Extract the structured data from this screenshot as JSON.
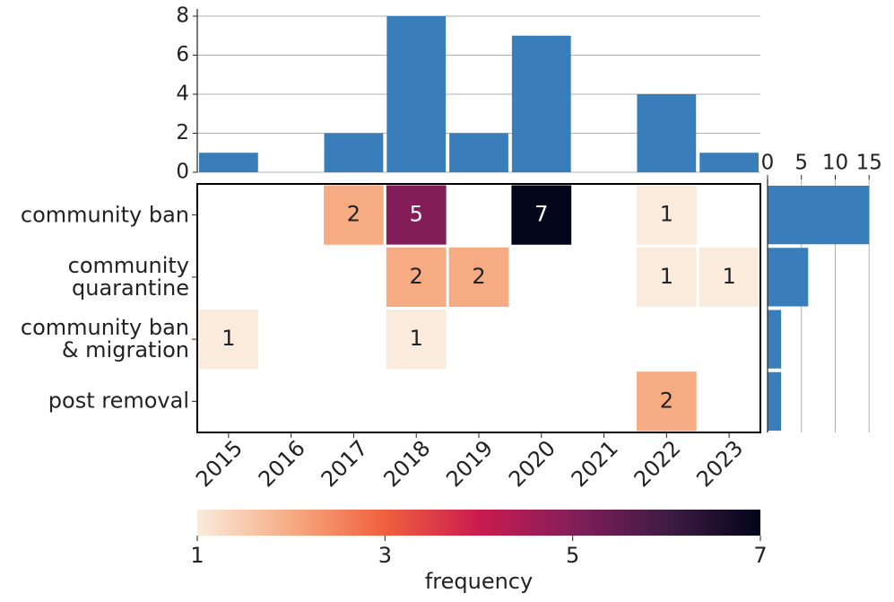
{
  "chart_data": {
    "type": "heatmap",
    "x": [
      "2015",
      "2016",
      "2017",
      "2018",
      "2019",
      "2020",
      "2021",
      "2022",
      "2023"
    ],
    "y": [
      "community ban",
      "community\nquarantine",
      "community ban\n& migration",
      "post removal"
    ],
    "values": [
      [
        null,
        null,
        2,
        5,
        null,
        7,
        null,
        1,
        null
      ],
      [
        null,
        null,
        null,
        2,
        2,
        null,
        null,
        1,
        1
      ],
      [
        1,
        null,
        null,
        1,
        null,
        null,
        null,
        null,
        null
      ],
      [
        null,
        null,
        null,
        null,
        null,
        null,
        null,
        2,
        null
      ]
    ],
    "colorbar": {
      "lim": [
        1,
        7
      ],
      "ticks": [
        1,
        3,
        5,
        7
      ],
      "label": "frequency",
      "colors": [
        "#faebdd",
        "#f6ab83",
        "#f0603d",
        "#cb1b4f",
        "#841e5a",
        "#3f1b44",
        "#03051a"
      ]
    },
    "top_bar": {
      "values": [
        1,
        0,
        2,
        8,
        2,
        7,
        0,
        4,
        1
      ],
      "ylim": [
        0,
        8
      ],
      "yticks": [
        0,
        2,
        4,
        6,
        8
      ],
      "color": "#3a7dbb",
      "grid": true
    },
    "side_bar": {
      "values": [
        15,
        6,
        2,
        2
      ],
      "xlim": [
        0,
        15.5
      ],
      "xticks": [
        0,
        5,
        10,
        15
      ],
      "color": "#3a7dbb",
      "grid": true
    }
  }
}
